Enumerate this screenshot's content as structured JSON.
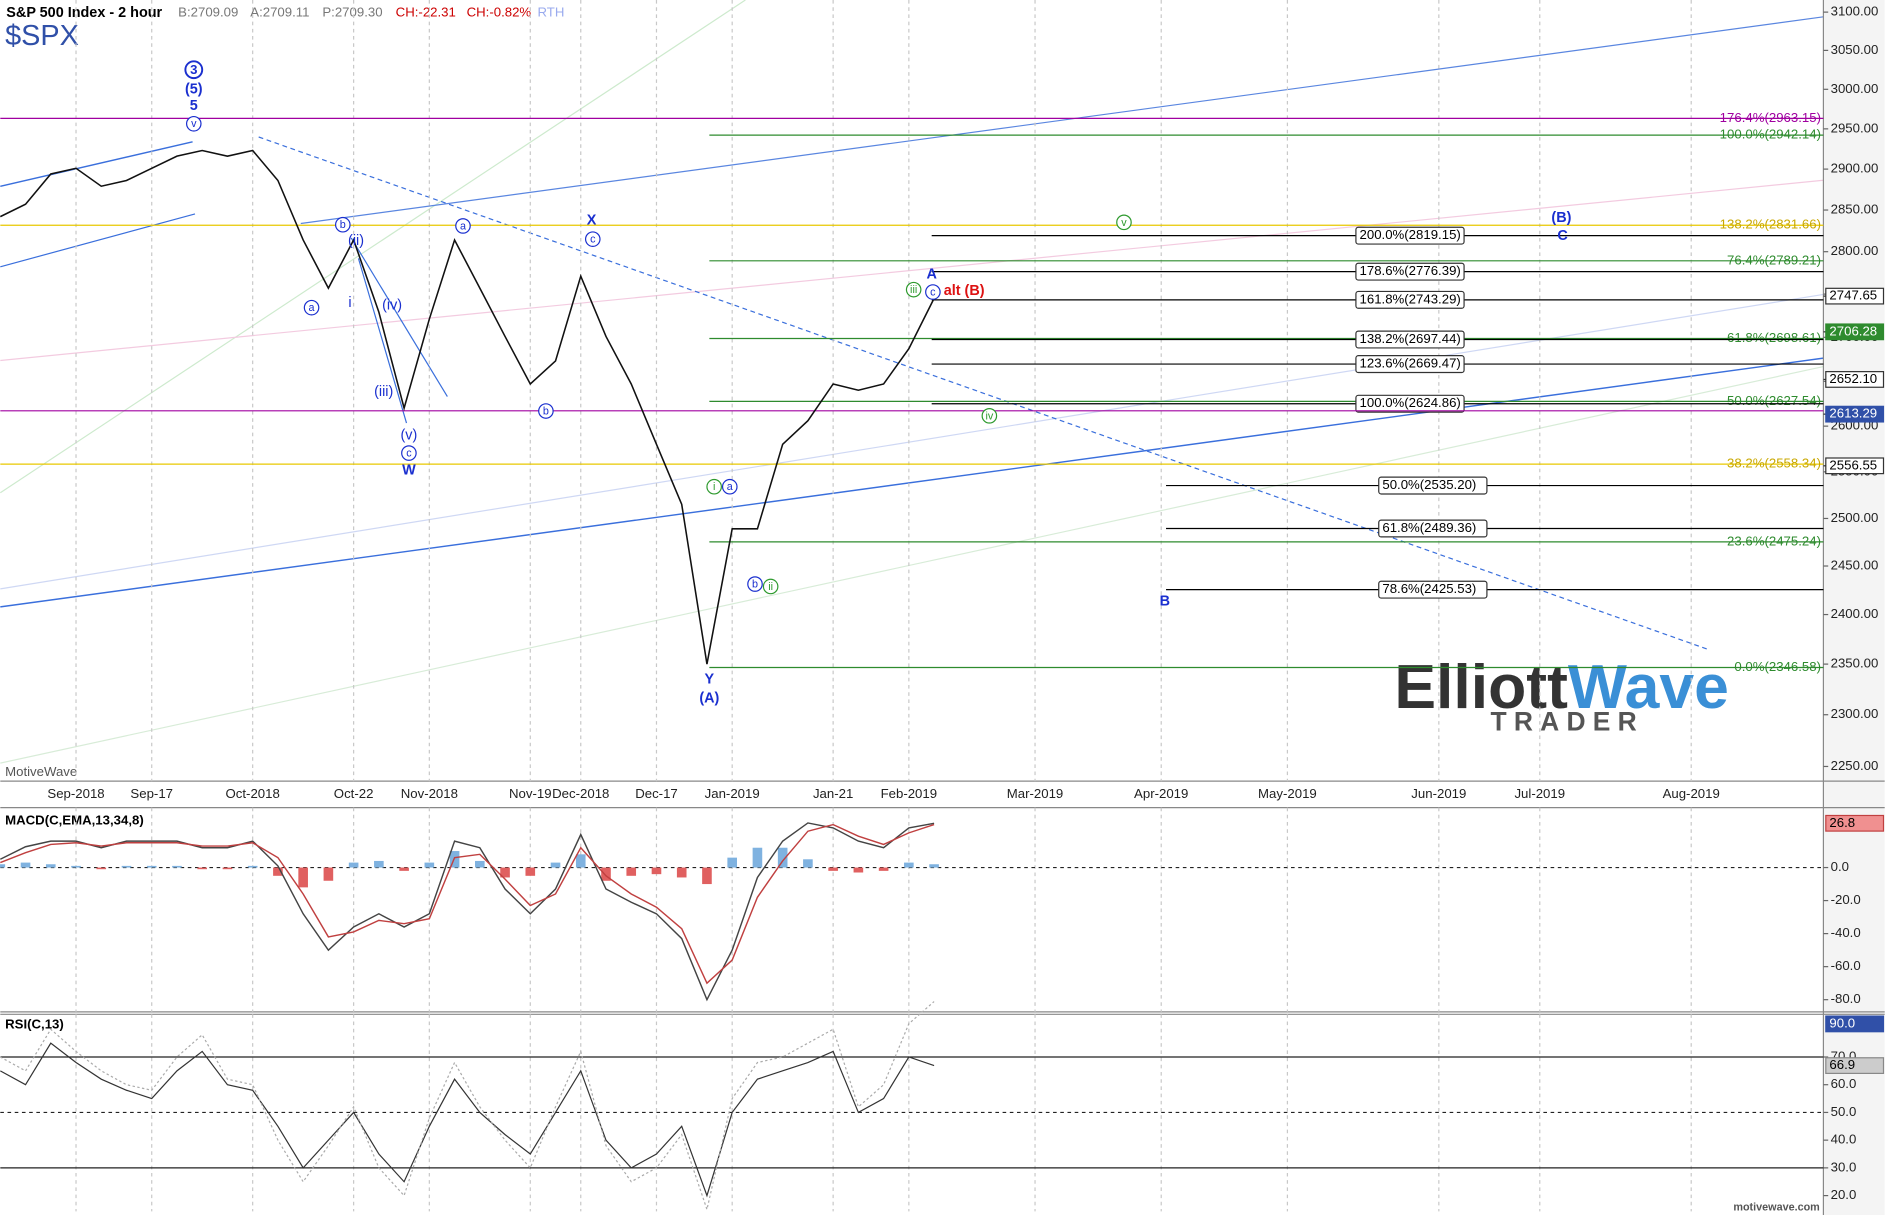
{
  "chart_data": [
    {
      "type": "line",
      "title": "S&P 500 Index - 2 hour",
      "symbol": "$SPX",
      "quote": [
        "B:2709.09",
        "A:2709.11",
        "P:2709.30"
      ],
      "change": [
        "CH:-22.31",
        "CH:-0.82%"
      ],
      "session": "RTH",
      "categories": [
        null,
        null,
        null,
        "Sep-2018",
        null,
        null,
        "Sep-17",
        null,
        null,
        null,
        "Oct-2018",
        null,
        null,
        null,
        "Oct-22",
        null,
        null,
        "Nov-2018",
        null,
        null,
        null,
        "Nov-19",
        null,
        "Dec-2018",
        null,
        null,
        "Dec-17",
        null,
        null,
        "Jan-2019",
        null,
        null,
        null,
        "Jan-21",
        null,
        null,
        "Feb-2019",
        null,
        null,
        null,
        null,
        "Mar-2019",
        null,
        null,
        null,
        null,
        "Apr-2019",
        null,
        null,
        null,
        null,
        "May-2019",
        null,
        null,
        null,
        null,
        null,
        "Jun-2019",
        null,
        null,
        null,
        "Jul-2019",
        null,
        null,
        null,
        null,
        null,
        "Aug-2019",
        null,
        null,
        null,
        null,
        null
      ],
      "series": [
        {
          "color": "#111111",
          "values": [
            2842,
            2857,
            2894,
            2901,
            2879,
            2886,
            2901,
            2916,
            2923,
            2916,
            2923,
            2886,
            2814,
            2757,
            2814,
            2729,
            2620,
            2721,
            2814,
            2757,
            2701,
            2647,
            2673,
            2771,
            2701,
            2647,
            2580,
            2515,
            2350,
            2489,
            2489,
            2580,
            2606,
            2647,
            2640,
            2647,
            2687,
            2745,
            null,
            null,
            null,
            null,
            null,
            null,
            null,
            null,
            null,
            null,
            null,
            null,
            null,
            null,
            null,
            null,
            null,
            null,
            null,
            null,
            null,
            null,
            null,
            null,
            null,
            null,
            null,
            null,
            null,
            null,
            null,
            null,
            null,
            null,
            null
          ]
        }
      ],
      "ylim": [
        2236,
        3116
      ],
      "log": true,
      "yticks": [
        {
          "value": 3100,
          "label": "3100.00"
        },
        {
          "value": 3050,
          "label": "3050.00"
        },
        {
          "value": 3000,
          "label": "3000.00"
        },
        {
          "value": 2950,
          "label": "2950.00"
        },
        {
          "value": 2900,
          "label": "2900.00"
        },
        {
          "value": 2850,
          "label": "2850.00"
        },
        {
          "value": 2800,
          "label": "2800.00"
        },
        {
          "value": 2750,
          "label": "2750.00"
        },
        {
          "value": 2700,
          "label": "2700.00"
        },
        {
          "value": 2650,
          "label": "2650.00"
        },
        {
          "value": 2600,
          "label": "2600.00"
        },
        {
          "value": 2550,
          "label": "2550.00"
        },
        {
          "value": 2500,
          "label": "2500.00"
        },
        {
          "value": 2450,
          "label": "2450.00"
        },
        {
          "value": 2400,
          "label": "2400.00"
        },
        {
          "value": 2350,
          "label": "2350.00"
        },
        {
          "value": 2300,
          "label": "2300.00"
        },
        {
          "value": 2250,
          "label": "2250.00"
        }
      ],
      "levels": [
        {
          "value": 2963.15,
          "label": "176.4%(2963.15)",
          "color": "#a000a0"
        },
        {
          "value": 2942.14,
          "label": "100.0%(2942.14)",
          "color": "#2e8b2e"
        },
        {
          "value": 2831.66,
          "label": "138.2%(2831.66)",
          "color": "#e8c800"
        },
        {
          "value": 2819.15,
          "label": "200.0%(2819.15)",
          "color": "#000000"
        },
        {
          "value": 2789.21,
          "label": "76.4%(2789.21)",
          "color": "#2e8b2e"
        },
        {
          "value": 2776.39,
          "label": "178.6%(2776.39)",
          "color": "#000000"
        },
        {
          "value": 2743.29,
          "label": "161.8%(2743.29)",
          "color": "#000000"
        },
        {
          "value": 2698.61,
          "label": "61.8%(2698.61)",
          "color": "#2e8b2e"
        },
        {
          "value": 2697.44,
          "label": "138.2%(2697.44)",
          "color": "#000000"
        },
        {
          "value": 2669.47,
          "label": "123.6%(2669.47)",
          "color": "#000000"
        },
        {
          "value": 2627.54,
          "label": "50.0%(2627.54)",
          "color": "#2e8b2e"
        },
        {
          "value": 2624.86,
          "label": "100.0%(2624.86)",
          "color": "#000000"
        },
        {
          "value": 2617,
          "color": "#a000a0"
        },
        {
          "value": 2558.34,
          "label": "38.2%(2558.34)",
          "color": "#e8c800"
        },
        {
          "value": 2535.2,
          "label": "50.0%(2535.20)",
          "color": "#000000"
        },
        {
          "value": 2489.36,
          "label": "61.8%(2489.36)",
          "color": "#000000"
        },
        {
          "value": 2475.24,
          "label": "23.6%(2475.24)",
          "color": "#2e8b2e"
        },
        {
          "value": 2425.53,
          "label": "78.6%(2425.53)",
          "color": "#000000"
        },
        {
          "value": 2346.58,
          "label": "0.0%(2346.58)",
          "color": "#2e8b2e"
        }
      ],
      "price_labels": [
        {
          "value": 2747.65,
          "label": "2747.65"
        },
        {
          "value": 2706.28,
          "label": "2706.28"
        },
        {
          "value": 2652.1,
          "label": "2652.10"
        },
        {
          "value": 2613.29,
          "label": "2613.29"
        },
        {
          "value": 2556.55,
          "label": "2556.55"
        }
      ],
      "wave_labels": [
        "3",
        "(5)",
        "5",
        "v",
        "b",
        "(ii)",
        "i",
        "(iv)",
        "(iii)",
        "(v)",
        "c",
        "W",
        "a",
        "a",
        "b",
        "X",
        "c",
        "Y",
        "(A)",
        "i",
        "a",
        "b",
        "ii",
        "iii",
        "A",
        "c",
        "alt (B)",
        "iv",
        "v",
        "(B)",
        "C",
        "B"
      ],
      "watermark": "MotiveWave",
      "logo": [
        "Elliott",
        "Wave",
        "TRADER"
      ],
      "footer": "motivewave.com"
    },
    {
      "type": "macd",
      "title": "MACD(C,EMA,13,34,8)",
      "series": [
        {
          "color": "#444444",
          "values": [
            5,
            12.6,
            16,
            16,
            12,
            16,
            16,
            16,
            12,
            12,
            16,
            1,
            -28,
            -50,
            -36,
            -28,
            -36,
            -28,
            16,
            12,
            -13,
            -28,
            -13,
            20,
            -13,
            -21,
            -28,
            -43,
            -80,
            -50,
            -6,
            16,
            27,
            24,
            16,
            12,
            24,
            26.8,
            null,
            null,
            null,
            null,
            null,
            null,
            null,
            null,
            null,
            null,
            null,
            null,
            null,
            null,
            null,
            null,
            null,
            null,
            null,
            null,
            null,
            null,
            null,
            null,
            null,
            null,
            null,
            null,
            null,
            null,
            null,
            null,
            null,
            null,
            null
          ]
        },
        {
          "color": "#c04040",
          "values": [
            3,
            9,
            14,
            15,
            13,
            15,
            15,
            15,
            13,
            13,
            15,
            6,
            -16,
            -42,
            -39,
            -32,
            -34,
            -31,
            6,
            8,
            -7,
            -23,
            -16,
            12,
            -5,
            -16,
            -24,
            -37,
            -70,
            -56,
            -18,
            4,
            22,
            26,
            19,
            14,
            21,
            26,
            null,
            null,
            null,
            null,
            null,
            null,
            null,
            null,
            null,
            null,
            null,
            null,
            null,
            null,
            null,
            null,
            null,
            null,
            null,
            null,
            null,
            null,
            null,
            null,
            null,
            null,
            null,
            null,
            null,
            null,
            null,
            null,
            null,
            null,
            null
          ]
        },
        {
          "colors": [
            "#7fb2e0",
            "#e06060"
          ],
          "values": [
            2,
            3,
            2,
            1,
            -1,
            1,
            1,
            1,
            -1,
            -1,
            1,
            -5,
            -12,
            -8,
            3,
            4,
            -2,
            3,
            10,
            4,
            -6,
            -5,
            3,
            8,
            -8,
            -5,
            -4,
            -6,
            -10,
            6,
            12,
            12,
            5,
            -2,
            -3,
            -2,
            3,
            2,
            null,
            null,
            null,
            null,
            null,
            null,
            null,
            null,
            null,
            null,
            null,
            null,
            null,
            null,
            null,
            null,
            null,
            null,
            null,
            null,
            null,
            null,
            null,
            null,
            null,
            null,
            null,
            null,
            null,
            null,
            null,
            null,
            null,
            null,
            null
          ]
        }
      ],
      "ylim": [
        -87.4,
        36.3
      ],
      "yticks": [
        {
          "value": 0,
          "label": "0.0"
        },
        {
          "value": -20,
          "label": "-20.0"
        },
        {
          "value": -40,
          "label": "-40.0"
        },
        {
          "value": -60,
          "label": "-60.0"
        },
        {
          "value": -80,
          "label": "-80.0"
        }
      ]
    },
    {
      "type": "line",
      "title": "RSI(C,13)",
      "series": [
        {
          "color": "#333333",
          "values": [
            65,
            60,
            75,
            68,
            62,
            58,
            55,
            65,
            72,
            60,
            58,
            45,
            30,
            40,
            50,
            35,
            25,
            45,
            62,
            50,
            42,
            35,
            50,
            65,
            40,
            30,
            35,
            45,
            20,
            50,
            62,
            65,
            68,
            72,
            50,
            55,
            70,
            66.9,
            null,
            null,
            null,
            null,
            null,
            null,
            null,
            null,
            null,
            null,
            null,
            null,
            null,
            null,
            null,
            null,
            null,
            null,
            null,
            null,
            null,
            null,
            null,
            null,
            null,
            null,
            null,
            null,
            null,
            null,
            null,
            null,
            null,
            null,
            null
          ]
        },
        {
          "color": "#aaaaaa",
          "dashed": true,
          "values": [
            70,
            65,
            80,
            72,
            65,
            60,
            58,
            70,
            78,
            62,
            60,
            40,
            25,
            38,
            52,
            30,
            20,
            48,
            68,
            52,
            40,
            30,
            52,
            72,
            38,
            25,
            30,
            42,
            15,
            55,
            68,
            70,
            75,
            80,
            52,
            60,
            82,
            90,
            null,
            null,
            null,
            null,
            null,
            null,
            null,
            null,
            null,
            null,
            null,
            null,
            null,
            null,
            null,
            null,
            null,
            null,
            null,
            null,
            null,
            null,
            null,
            null,
            null,
            null,
            null,
            null,
            null,
            null,
            null,
            null,
            null,
            null,
            null
          ],
          "value_labels": [
            null,
            null,
            null,
            null,
            null,
            null,
            null,
            null,
            null,
            null,
            null,
            null,
            null,
            null,
            null,
            null,
            null,
            null,
            null,
            null,
            null,
            null,
            null,
            null,
            null,
            null,
            null,
            null,
            null,
            null,
            null,
            null,
            null,
            null,
            null,
            null,
            null,
            "90.0",
            null,
            null,
            null,
            null,
            null,
            null,
            null,
            null,
            null,
            null,
            null,
            null,
            null,
            null,
            null,
            null,
            null,
            null,
            null,
            null,
            null,
            null,
            null,
            null,
            null,
            null,
            null,
            null,
            null,
            null,
            null,
            null,
            null,
            null,
            null
          ]
        }
      ],
      "ylim": [
        14.3,
        85.4
      ],
      "yticks": [
        {
          "value": 70,
          "label": "70.0"
        },
        {
          "value": 60,
          "label": "60.0"
        },
        {
          "value": 50,
          "label": "50.0"
        },
        {
          "value": 40,
          "label": "40.0"
        },
        {
          "value": 30,
          "label": "30.0"
        },
        {
          "value": 20,
          "label": "20.0"
        }
      ],
      "levels": [
        70,
        50,
        30
      ],
      "level_styles": [
        "solid",
        "dashed",
        "solid"
      ]
    }
  ]
}
